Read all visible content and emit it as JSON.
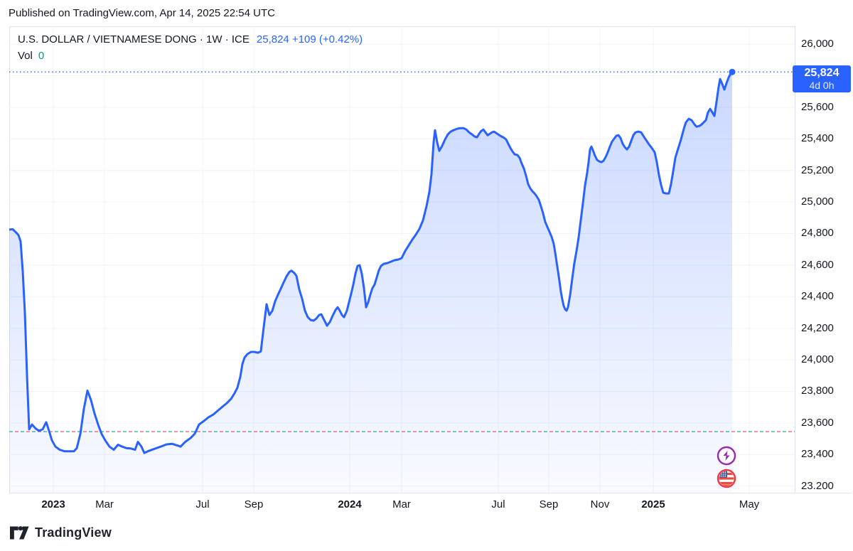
{
  "published_bar": {
    "text": "Published on TradingView.com, Apr 14, 2025 22:54 UTC"
  },
  "header": {
    "symbol_title": "U.S. DOLLAR / VIETNAMESE DONG · 1W · ICE",
    "quote": "25,824 +109 (+0.42%)",
    "volume_label": "Vol",
    "volume_value": "0"
  },
  "price_label": {
    "price": "25,824",
    "countdown": "4d 0h"
  },
  "watermark": {
    "brand": "TradingView"
  },
  "colors": {
    "line": "#2962ff",
    "accent_blue": "#2962ff",
    "vol_teal": "#089981",
    "prev_close_red": "#f7525f",
    "prev_close_teal": "#22ab94",
    "grid": "#f0f3fa",
    "border": "#e0e3eb",
    "text": "#131722",
    "event_purple": "#9c27b0",
    "event_red": "#f23645"
  },
  "chart_data": {
    "type": "area",
    "title": "U.S. DOLLAR / VIETNAMESE DONG",
    "timeframe": "1W",
    "exchange": "ICE",
    "last_price": 25824,
    "change": "+109",
    "change_pct": "+0.42%",
    "current_price_level": 25824,
    "prev_close_level": 23545,
    "ylim": [
      23158,
      26113
    ],
    "grid_prices": [
      23200,
      23400,
      23600,
      23800,
      24000,
      24200,
      24400,
      24600,
      24800,
      25000,
      25200,
      25400,
      25600,
      25800,
      26000
    ],
    "y_ticks": [
      {
        "price": 26000,
        "label": "26,000"
      },
      {
        "price": 25600,
        "label": "25,600"
      },
      {
        "price": 25400,
        "label": "25,400"
      },
      {
        "price": 25200,
        "label": "25,200"
      },
      {
        "price": 25000,
        "label": "25,000"
      },
      {
        "price": 24800,
        "label": "24,800"
      },
      {
        "price": 24600,
        "label": "24,600"
      },
      {
        "price": 24400,
        "label": "24,400"
      },
      {
        "price": 24200,
        "label": "24,200"
      },
      {
        "price": 24000,
        "label": "24,000"
      },
      {
        "price": 23800,
        "label": "23,800"
      },
      {
        "price": 23600,
        "label": "23,600"
      },
      {
        "price": 23400,
        "label": "23,400"
      },
      {
        "price": 23200,
        "label": "23.200"
      }
    ],
    "x_ticks": [
      {
        "f": 0.0561,
        "label": "2023",
        "bold": true
      },
      {
        "f": 0.1213,
        "label": "Mar",
        "bold": false
      },
      {
        "f": 0.2462,
        "label": "Jul",
        "bold": false
      },
      {
        "f": 0.3113,
        "label": "Sep",
        "bold": false
      },
      {
        "f": 0.4335,
        "label": "2024",
        "bold": true
      },
      {
        "f": 0.4995,
        "label": "Mar",
        "bold": false
      },
      {
        "f": 0.6226,
        "label": "Jul",
        "bold": false
      },
      {
        "f": 0.6869,
        "label": "Sep",
        "bold": false
      },
      {
        "f": 0.752,
        "label": "Nov",
        "bold": false
      },
      {
        "f": 0.8199,
        "label": "2025",
        "bold": true
      },
      {
        "f": 0.9421,
        "label": "May",
        "bold": false
      }
    ],
    "events": [
      {
        "icon": "lightning-event-icon",
        "shape": "lightning",
        "ring": "#9c27b0",
        "x": 1009,
        "y": 604
      },
      {
        "icon": "us-flag-event-icon",
        "shape": "us-flag",
        "ring": "#f23645",
        "x": 1009,
        "y": 636
      }
    ],
    "points": [
      [
        0,
        24825
      ],
      [
        5,
        24827
      ],
      [
        10,
        24805
      ],
      [
        13,
        24790
      ],
      [
        16,
        24750
      ],
      [
        19,
        24560
      ],
      [
        22,
        24300
      ],
      [
        25,
        23900
      ],
      [
        28,
        23560
      ],
      [
        32,
        23590
      ],
      [
        37,
        23565
      ],
      [
        42,
        23550
      ],
      [
        47,
        23560
      ],
      [
        52,
        23605
      ],
      [
        56,
        23550
      ],
      [
        60,
        23490
      ],
      [
        65,
        23450
      ],
      [
        71,
        23430
      ],
      [
        78,
        23420
      ],
      [
        85,
        23420
      ],
      [
        91,
        23420
      ],
      [
        95,
        23440
      ],
      [
        100,
        23530
      ],
      [
        105,
        23690
      ],
      [
        110,
        23805
      ],
      [
        115,
        23745
      ],
      [
        120,
        23660
      ],
      [
        125,
        23590
      ],
      [
        130,
        23530
      ],
      [
        135,
        23490
      ],
      [
        141,
        23450
      ],
      [
        147,
        23430
      ],
      [
        153,
        23462
      ],
      [
        159,
        23450
      ],
      [
        165,
        23440
      ],
      [
        171,
        23438
      ],
      [
        177,
        23430
      ],
      [
        181,
        23480
      ],
      [
        186,
        23450
      ],
      [
        190,
        23410
      ],
      [
        197,
        23424
      ],
      [
        205,
        23437
      ],
      [
        213,
        23450
      ],
      [
        221,
        23464
      ],
      [
        229,
        23468
      ],
      [
        236,
        23458
      ],
      [
        241,
        23450
      ],
      [
        248,
        23482
      ],
      [
        255,
        23504
      ],
      [
        261,
        23532
      ],
      [
        267,
        23590
      ],
      [
        274,
        23613
      ],
      [
        280,
        23635
      ],
      [
        287,
        23653
      ],
      [
        294,
        23680
      ],
      [
        300,
        23703
      ],
      [
        306,
        23725
      ],
      [
        312,
        23752
      ],
      [
        317,
        23788
      ],
      [
        321,
        23824
      ],
      [
        325,
        23892
      ],
      [
        328,
        23973
      ],
      [
        331,
        24014
      ],
      [
        335,
        24036
      ],
      [
        340,
        24050
      ],
      [
        345,
        24050
      ],
      [
        350,
        24045
      ],
      [
        354,
        24054
      ],
      [
        358,
        24207
      ],
      [
        362,
        24352
      ],
      [
        366,
        24284
      ],
      [
        370,
        24310
      ],
      [
        374,
        24370
      ],
      [
        378,
        24412
      ],
      [
        382,
        24450
      ],
      [
        386,
        24490
      ],
      [
        390,
        24528
      ],
      [
        394,
        24556
      ],
      [
        397,
        24565
      ],
      [
        401,
        24550
      ],
      [
        404,
        24532
      ],
      [
        408,
        24446
      ],
      [
        412,
        24387
      ],
      [
        416,
        24311
      ],
      [
        420,
        24270
      ],
      [
        424,
        24252
      ],
      [
        428,
        24248
      ],
      [
        432,
        24261
      ],
      [
        436,
        24284
      ],
      [
        439,
        24288
      ],
      [
        443,
        24252
      ],
      [
        447,
        24216
      ],
      [
        451,
        24239
      ],
      [
        455,
        24279
      ],
      [
        459,
        24315
      ],
      [
        462,
        24333
      ],
      [
        465,
        24311
      ],
      [
        468,
        24284
      ],
      [
        471,
        24270
      ],
      [
        475,
        24311
      ],
      [
        478,
        24365
      ],
      [
        481,
        24419
      ],
      [
        484,
        24477
      ],
      [
        487,
        24545
      ],
      [
        490,
        24595
      ],
      [
        493,
        24599
      ],
      [
        496,
        24545
      ],
      [
        499,
        24455
      ],
      [
        502,
        24333
      ],
      [
        505,
        24365
      ],
      [
        508,
        24414
      ],
      [
        511,
        24455
      ],
      [
        514,
        24477
      ],
      [
        517,
        24522
      ],
      [
        520,
        24567
      ],
      [
        523,
        24595
      ],
      [
        527,
        24608
      ],
      [
        532,
        24613
      ],
      [
        537,
        24622
      ],
      [
        542,
        24631
      ],
      [
        547,
        24635
      ],
      [
        552,
        24644
      ],
      [
        557,
        24689
      ],
      [
        562,
        24725
      ],
      [
        567,
        24761
      ],
      [
        572,
        24793
      ],
      [
        577,
        24829
      ],
      [
        582,
        24883
      ],
      [
        587,
        24973
      ],
      [
        591,
        25063
      ],
      [
        594,
        25176
      ],
      [
        597,
        25378
      ],
      [
        599,
        25455
      ],
      [
        602,
        25378
      ],
      [
        605,
        25324
      ],
      [
        609,
        25356
      ],
      [
        613,
        25396
      ],
      [
        617,
        25428
      ],
      [
        621,
        25446
      ],
      [
        625,
        25455
      ],
      [
        630,
        25464
      ],
      [
        635,
        25468
      ],
      [
        639,
        25468
      ],
      [
        643,
        25459
      ],
      [
        647,
        25441
      ],
      [
        651,
        25428
      ],
      [
        655,
        25414
      ],
      [
        658,
        25410
      ],
      [
        661,
        25432
      ],
      [
        664,
        25450
      ],
      [
        667,
        25459
      ],
      [
        670,
        25441
      ],
      [
        673,
        25423
      ],
      [
        676,
        25432
      ],
      [
        679,
        25441
      ],
      [
        682,
        25446
      ],
      [
        685,
        25437
      ],
      [
        688,
        25428
      ],
      [
        691,
        25419
      ],
      [
        695,
        25410
      ],
      [
        699,
        25396
      ],
      [
        702,
        25369
      ],
      [
        705,
        25342
      ],
      [
        708,
        25320
      ],
      [
        711,
        25302
      ],
      [
        715,
        25297
      ],
      [
        718,
        25279
      ],
      [
        721,
        25243
      ],
      [
        724,
        25212
      ],
      [
        727,
        25167
      ],
      [
        730,
        25113
      ],
      [
        733,
        25086
      ],
      [
        736,
        25068
      ],
      [
        739,
        25054
      ],
      [
        742,
        25036
      ],
      [
        745,
        25014
      ],
      [
        748,
        24973
      ],
      [
        751,
        24928
      ],
      [
        754,
        24874
      ],
      [
        757,
        24842
      ],
      [
        760,
        24811
      ],
      [
        763,
        24779
      ],
      [
        766,
        24734
      ],
      [
        768,
        24680
      ],
      [
        771,
        24590
      ],
      [
        774,
        24500
      ],
      [
        776,
        24432
      ],
      [
        778,
        24383
      ],
      [
        780,
        24342
      ],
      [
        782,
        24320
      ],
      [
        784,
        24311
      ],
      [
        786,
        24333
      ],
      [
        789,
        24410
      ],
      [
        792,
        24514
      ],
      [
        795,
        24613
      ],
      [
        798,
        24689
      ],
      [
        801,
        24775
      ],
      [
        804,
        24883
      ],
      [
        807,
        24991
      ],
      [
        810,
        25104
      ],
      [
        813,
        25185
      ],
      [
        815,
        25252
      ],
      [
        817,
        25333
      ],
      [
        819,
        25351
      ],
      [
        821,
        25329
      ],
      [
        824,
        25293
      ],
      [
        827,
        25266
      ],
      [
        830,
        25257
      ],
      [
        833,
        25252
      ],
      [
        836,
        25261
      ],
      [
        839,
        25284
      ],
      [
        842,
        25315
      ],
      [
        845,
        25351
      ],
      [
        848,
        25383
      ],
      [
        851,
        25401
      ],
      [
        854,
        25419
      ],
      [
        857,
        25423
      ],
      [
        860,
        25405
      ],
      [
        863,
        25369
      ],
      [
        866,
        25347
      ],
      [
        869,
        25333
      ],
      [
        872,
        25351
      ],
      [
        875,
        25387
      ],
      [
        878,
        25423
      ],
      [
        881,
        25441
      ],
      [
        885,
        25446
      ],
      [
        889,
        25441
      ],
      [
        892,
        25419
      ],
      [
        896,
        25392
      ],
      [
        900,
        25365
      ],
      [
        904,
        25342
      ],
      [
        908,
        25315
      ],
      [
        911,
        25252
      ],
      [
        914,
        25171
      ],
      [
        917,
        25108
      ],
      [
        920,
        25059
      ],
      [
        924,
        25054
      ],
      [
        928,
        25054
      ],
      [
        931,
        25113
      ],
      [
        934,
        25194
      ],
      [
        937,
        25279
      ],
      [
        941,
        25338
      ],
      [
        945,
        25396
      ],
      [
        949,
        25464
      ],
      [
        952,
        25505
      ],
      [
        956,
        25527
      ],
      [
        960,
        25518
      ],
      [
        964,
        25491
      ],
      [
        967,
        25477
      ],
      [
        971,
        25482
      ],
      [
        974,
        25491
      ],
      [
        977,
        25505
      ],
      [
        980,
        25518
      ],
      [
        983,
        25568
      ],
      [
        986,
        25590
      ],
      [
        989,
        25568
      ],
      [
        992,
        25545
      ],
      [
        995,
        25635
      ],
      [
        998,
        25730
      ],
      [
        1000,
        25779
      ],
      [
        1003,
        25748
      ],
      [
        1006,
        25712
      ],
      [
        1009,
        25752
      ],
      [
        1012,
        25788
      ],
      [
        1015,
        25815
      ],
      [
        1017,
        25824
      ]
    ]
  }
}
